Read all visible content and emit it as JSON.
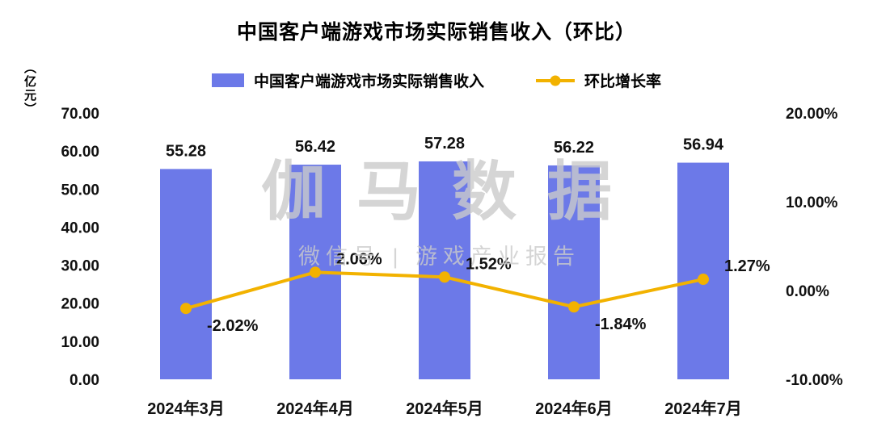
{
  "chart_data": {
    "type": "bar",
    "subtype": "combo-bar-line-dual-axis",
    "title": "中国客户端游戏市场实际销售收入（环比）",
    "y_unit": "（亿元）",
    "categories": [
      "2024年3月",
      "2024年4月",
      "2024年5月",
      "2024年6月",
      "2024年7月"
    ],
    "series": [
      {
        "name": "中国客户端游戏市场实际销售收入",
        "type": "bar",
        "axis": "left",
        "values": [
          55.28,
          56.42,
          57.28,
          56.22,
          56.94
        ],
        "labels": [
          "55.28",
          "56.42",
          "57.28",
          "56.22",
          "56.94"
        ],
        "color": "#6C79E8"
      },
      {
        "name": "环比增长率",
        "type": "line",
        "axis": "right",
        "values": [
          -2.02,
          2.06,
          1.52,
          -1.84,
          1.27
        ],
        "labels": [
          "-2.02%",
          "2.06%",
          "1.52%",
          "-1.84%",
          "1.27%"
        ],
        "color": "#F2B200"
      }
    ],
    "left_axis": {
      "min": 0,
      "max": 70,
      "ticks": [
        "70.00",
        "60.00",
        "50.00",
        "40.00",
        "30.00",
        "20.00",
        "10.00",
        "0.00"
      ]
    },
    "right_axis": {
      "min": -10,
      "max": 20,
      "ticks": [
        "20.00%",
        "10.00%",
        "0.00%",
        "-10.00%"
      ]
    },
    "legend": [
      "中国客户端游戏市场实际销售收入",
      "环比增长率"
    ],
    "legend_position": "top",
    "gridlines": false
  },
  "watermark": {
    "line1": "伽马数据",
    "line2": "微信号 | 游戏产业报告"
  }
}
